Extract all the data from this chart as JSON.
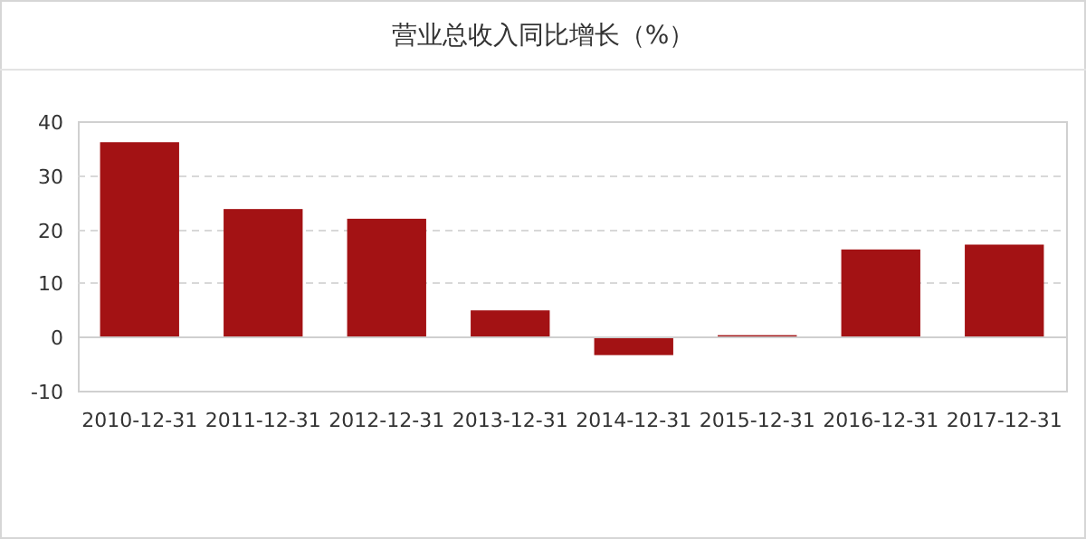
{
  "chart_data": {
    "type": "bar",
    "title": "营业总收入同比增长（%）",
    "categories": [
      "2010-12-31",
      "2011-12-31",
      "2012-12-31",
      "2013-12-31",
      "2014-12-31",
      "2015-12-31",
      "2016-12-31",
      "2017-12-31"
    ],
    "values": [
      36.1,
      23.7,
      21.9,
      4.9,
      -3.4,
      0.3,
      16.2,
      17.1
    ],
    "color": "#a31214",
    "ylim": [
      -10,
      40
    ],
    "yticks": [
      -10,
      0,
      10,
      20,
      30,
      40
    ],
    "grid": "y"
  }
}
